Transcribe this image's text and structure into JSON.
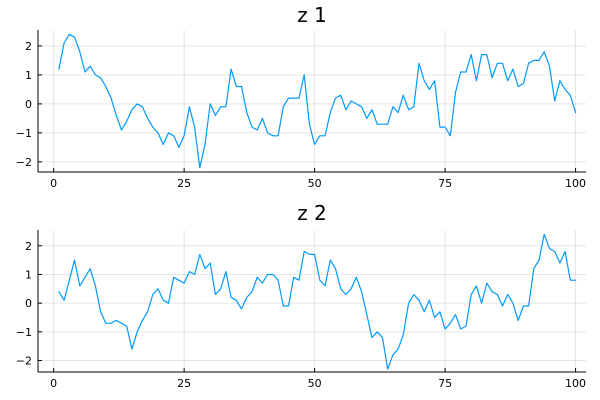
{
  "chart_data": [
    {
      "type": "line",
      "title": "z 1",
      "xlabel": "",
      "ylabel": "",
      "xlim": [
        -3,
        102
      ],
      "ylim": [
        -2.35,
        2.55
      ],
      "xticks": [
        0,
        25,
        50,
        75,
        100
      ],
      "xtick_labels": [
        "0",
        "25",
        "50",
        "75",
        "100"
      ],
      "yticks": [
        -2,
        -1,
        0,
        1,
        2
      ],
      "ytick_labels": [
        "−2",
        "−1",
        "0",
        "1",
        "2"
      ],
      "grid": true,
      "legend": false,
      "color": "#009AFA",
      "series": [
        {
          "x": [
            1,
            2,
            3,
            4,
            5,
            6,
            7,
            8,
            9,
            10,
            11,
            12,
            13,
            14,
            15,
            16,
            17,
            18,
            19,
            20,
            21,
            22,
            23,
            24,
            25,
            26,
            27,
            28,
            29,
            30,
            31,
            32,
            33,
            34,
            35,
            36,
            37,
            38,
            39,
            40,
            41,
            42,
            43,
            44,
            45,
            46,
            47,
            48,
            49,
            50,
            51,
            52,
            53,
            54,
            55,
            56,
            57,
            58,
            59,
            60,
            61,
            62,
            63,
            64,
            65,
            66,
            67,
            68,
            69,
            70,
            71,
            72,
            73,
            74,
            75,
            76,
            77,
            78,
            79,
            80,
            81,
            82,
            83,
            84,
            85,
            86,
            87,
            88,
            89,
            90,
            91,
            92,
            93,
            94,
            95,
            96,
            97,
            98,
            99,
            100
          ],
          "values": [
            1.2,
            2.1,
            2.4,
            2.3,
            1.8,
            1.1,
            1.3,
            1.0,
            0.9,
            0.6,
            0.2,
            -0.4,
            -0.9,
            -0.6,
            -0.2,
            0.0,
            -0.1,
            -0.5,
            -0.8,
            -1.0,
            -1.4,
            -1.0,
            -1.1,
            -1.5,
            -1.1,
            -0.1,
            -0.8,
            -2.2,
            -1.4,
            0.0,
            -0.4,
            -0.1,
            -0.1,
            1.2,
            0.6,
            0.6,
            -0.3,
            -0.8,
            -0.9,
            -0.5,
            -1.0,
            -1.1,
            -1.1,
            -0.1,
            0.2,
            0.2,
            0.2,
            1.0,
            -0.7,
            -1.4,
            -1.1,
            -1.1,
            -0.3,
            0.2,
            0.3,
            -0.2,
            0.1,
            0.0,
            -0.1,
            -0.5,
            -0.2,
            -0.7,
            -0.7,
            -0.7,
            -0.1,
            -0.3,
            0.3,
            -0.2,
            -0.1,
            1.4,
            0.8,
            0.5,
            0.8,
            -0.8,
            -0.8,
            -1.1,
            0.4,
            1.1,
            1.1,
            1.7,
            0.8,
            1.7,
            1.7,
            0.9,
            1.4,
            1.4,
            0.8,
            1.2,
            0.6,
            0.7,
            1.4,
            1.5,
            1.5,
            1.8,
            1.3,
            0.1,
            0.8,
            0.5,
            0.3,
            -0.3
          ]
        }
      ]
    },
    {
      "type": "line",
      "title": "z 2",
      "xlabel": "",
      "ylabel": "",
      "xlim": [
        -3,
        102
      ],
      "ylim": [
        -2.4,
        2.55
      ],
      "xticks": [
        0,
        25,
        50,
        75,
        100
      ],
      "xtick_labels": [
        "0",
        "25",
        "50",
        "75",
        "100"
      ],
      "yticks": [
        -2,
        -1,
        0,
        1,
        2
      ],
      "ytick_labels": [
        "−2",
        "−1",
        "0",
        "1",
        "2"
      ],
      "grid": true,
      "legend": false,
      "color": "#009AFA",
      "series": [
        {
          "x": [
            1,
            2,
            3,
            4,
            5,
            6,
            7,
            8,
            9,
            10,
            11,
            12,
            13,
            14,
            15,
            16,
            17,
            18,
            19,
            20,
            21,
            22,
            23,
            24,
            25,
            26,
            27,
            28,
            29,
            30,
            31,
            32,
            33,
            34,
            35,
            36,
            37,
            38,
            39,
            40,
            41,
            42,
            43,
            44,
            45,
            46,
            47,
            48,
            49,
            50,
            51,
            52,
            53,
            54,
            55,
            56,
            57,
            58,
            59,
            60,
            61,
            62,
            63,
            64,
            65,
            66,
            67,
            68,
            69,
            70,
            71,
            72,
            73,
            74,
            75,
            76,
            77,
            78,
            79,
            80,
            81,
            82,
            83,
            84,
            85,
            86,
            87,
            88,
            89,
            90,
            91,
            92,
            93,
            94,
            95,
            96,
            97,
            98,
            99,
            100
          ],
          "values": [
            0.4,
            0.1,
            0.8,
            1.5,
            0.6,
            0.9,
            1.2,
            0.6,
            -0.3,
            -0.7,
            -0.7,
            -0.6,
            -0.7,
            -0.8,
            -1.6,
            -1.0,
            -0.6,
            -0.3,
            0.3,
            0.5,
            0.1,
            0.0,
            0.9,
            0.8,
            0.7,
            1.1,
            1.0,
            1.7,
            1.2,
            1.4,
            0.3,
            0.5,
            1.1,
            0.2,
            0.1,
            -0.2,
            0.2,
            0.4,
            0.9,
            0.7,
            1.0,
            1.0,
            0.8,
            -0.1,
            -0.1,
            0.9,
            0.8,
            1.8,
            1.7,
            1.7,
            0.8,
            0.6,
            1.5,
            1.2,
            0.5,
            0.3,
            0.5,
            0.9,
            0.4,
            -0.4,
            -1.2,
            -1.0,
            -1.2,
            -2.3,
            -1.8,
            -1.6,
            -1.1,
            0.0,
            0.3,
            0.1,
            -0.3,
            0.1,
            -0.5,
            -0.3,
            -0.9,
            -0.7,
            -0.4,
            -0.9,
            -0.8,
            0.3,
            0.6,
            0.0,
            0.7,
            0.4,
            0.3,
            -0.1,
            0.3,
            0.0,
            -0.6,
            -0.1,
            -0.1,
            1.2,
            1.5,
            2.4,
            1.9,
            1.8,
            1.4,
            1.8,
            0.8,
            0.8
          ]
        }
      ]
    }
  ]
}
